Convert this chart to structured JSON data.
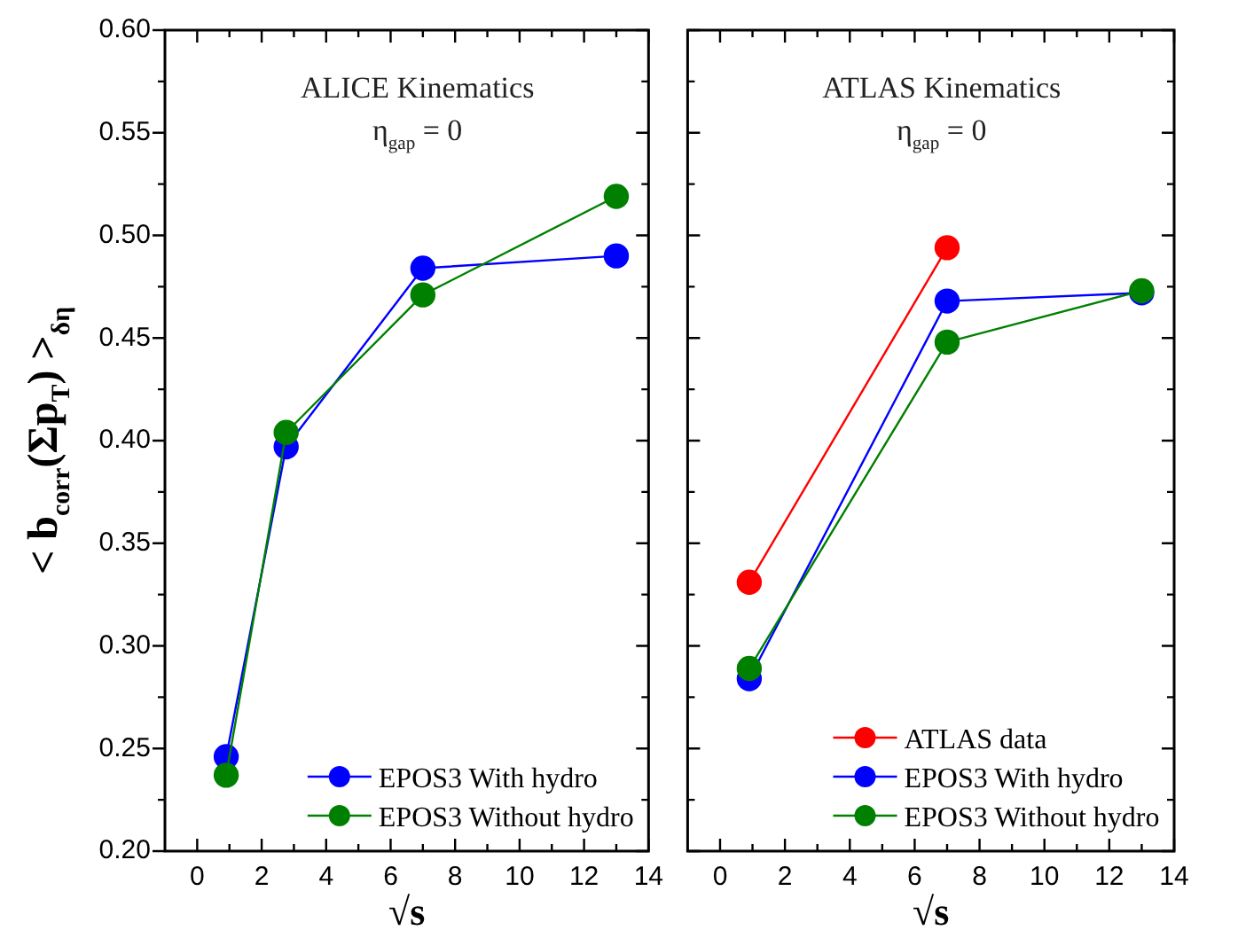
{
  "chart_data": [
    {
      "type": "line",
      "ylabel": "< b$_{corr}$(Σp$_{T}$) >$_{δη}$",
      "xlabel": "√s",
      "annotations": [
        "ALICE Kinematics",
        "η$_{gap}$ = 0"
      ],
      "xlim": [
        -1,
        14
      ],
      "xticks": [
        0,
        {
          "value": 1,
          "label": null
        },
        2,
        {
          "value": 3,
          "label": null
        },
        4,
        {
          "value": 5,
          "label": null
        },
        6,
        {
          "value": 7,
          "label": null
        },
        8,
        {
          "value": 9,
          "label": null
        },
        10,
        {
          "value": 11,
          "label": null
        },
        12,
        {
          "value": 13,
          "label": null
        },
        14
      ],
      "ylim": [
        0.2,
        0.6
      ],
      "yticks": [
        {
          "value": 0.2,
          "label": "0.20"
        },
        {
          "value": 0.225,
          "label": null
        },
        0.25,
        {
          "value": 0.275,
          "label": null
        },
        {
          "value": 0.3,
          "label": "0.30"
        },
        {
          "value": 0.325,
          "label": null
        },
        0.35,
        {
          "value": 0.375,
          "label": null
        },
        {
          "value": 0.4,
          "label": "0.40"
        },
        {
          "value": 0.425,
          "label": null
        },
        0.45,
        {
          "value": 0.475,
          "label": null
        },
        {
          "value": 0.5,
          "label": "0.50"
        },
        {
          "value": 0.525,
          "label": null
        },
        0.55,
        {
          "value": 0.575,
          "label": null
        },
        {
          "value": 0.6,
          "label": "0.60"
        }
      ],
      "grid": false,
      "legend": "bottom right",
      "marker": "circle",
      "line_style": "solid",
      "series": [
        {
          "name": "EPOS3 With hydro",
          "color": "#0000ff",
          "x": [
            0.9,
            2.76,
            7,
            13
          ],
          "values": [
            0.246,
            0.397,
            0.484,
            0.49
          ]
        },
        {
          "name": "EPOS3 Without hydro",
          "color": "#008000",
          "x": [
            0.9,
            2.76,
            7,
            13
          ],
          "values": [
            0.237,
            0.404,
            0.471,
            0.519
          ]
        }
      ]
    },
    {
      "type": "line",
      "xlabel": "√s",
      "annotations": [
        "ATLAS Kinematics",
        "η$_{gap}$ = 0"
      ],
      "xlim": [
        -1,
        14
      ],
      "xticks": [
        0,
        {
          "value": 1,
          "label": null
        },
        2,
        {
          "value": 3,
          "label": null
        },
        4,
        {
          "value": 5,
          "label": null
        },
        6,
        {
          "value": 7,
          "label": null
        },
        8,
        {
          "value": 9,
          "label": null
        },
        10,
        {
          "value": 11,
          "label": null
        },
        12,
        {
          "value": 13,
          "label": null
        },
        14
      ],
      "ylim": [
        0.2,
        0.6
      ],
      "yticks": [
        0.2,
        {
          "value": 0.225,
          "label": null
        },
        0.25,
        {
          "value": 0.275,
          "label": null
        },
        0.3,
        {
          "value": 0.325,
          "label": null
        },
        0.35,
        {
          "value": 0.375,
          "label": null
        },
        0.4,
        {
          "value": 0.425,
          "label": null
        },
        0.45,
        {
          "value": 0.475,
          "label": null
        },
        0.5,
        {
          "value": 0.525,
          "label": null
        },
        0.55,
        {
          "value": 0.575,
          "label": null
        },
        0.6
      ],
      "tick_labels": "x",
      "grid": false,
      "legend": "bottom right",
      "marker": "circle",
      "line_style": "solid",
      "series": [
        {
          "name": "ATLAS data",
          "color": "#ff0000",
          "x": [
            0.9,
            7
          ],
          "values": [
            0.331,
            0.494
          ]
        },
        {
          "name": "EPOS3 With hydro",
          "color": "#0000ff",
          "x": [
            0.9,
            7,
            13
          ],
          "values": [
            0.284,
            0.468,
            0.472
          ]
        },
        {
          "name": "EPOS3 Without hydro",
          "color": "#008000",
          "x": [
            0.9,
            7,
            13
          ],
          "values": [
            0.289,
            0.448,
            0.473
          ]
        }
      ]
    }
  ]
}
